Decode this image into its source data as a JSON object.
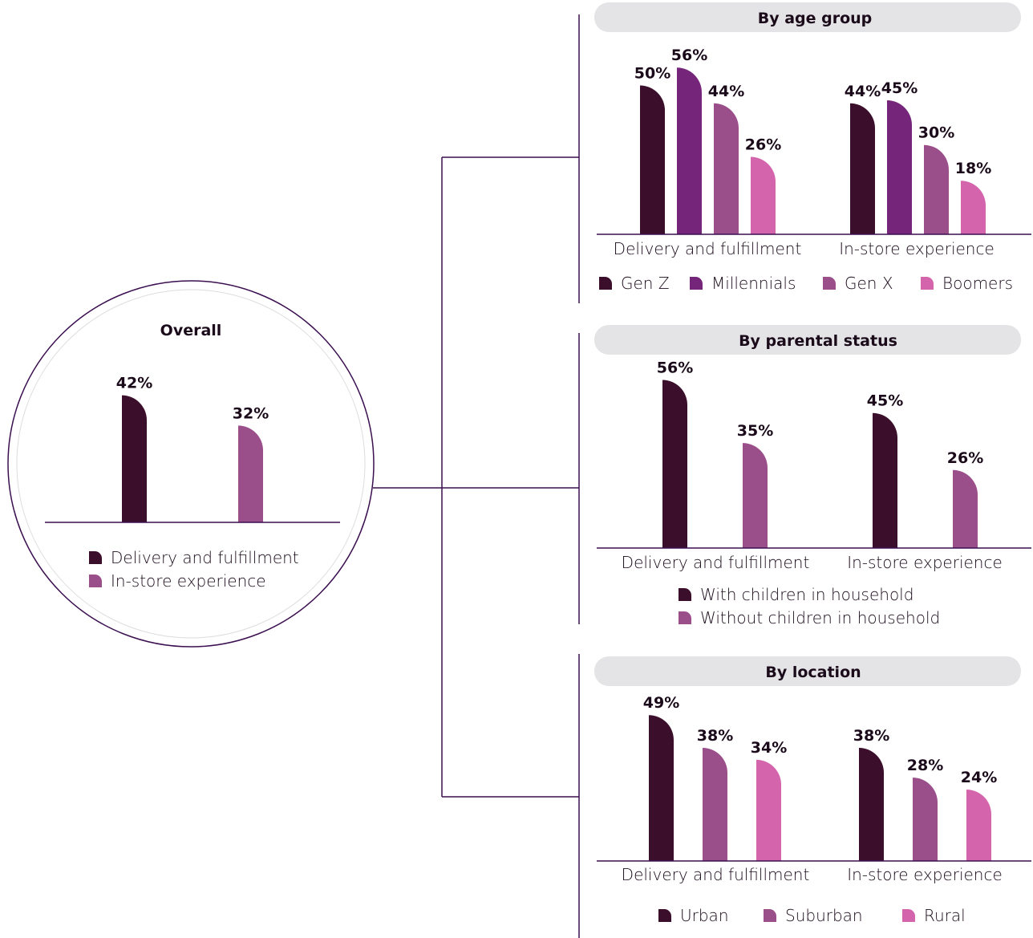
{
  "chart_data": [
    {
      "type": "bar",
      "title": "Overall",
      "categories": [
        ""
      ],
      "series": [
        {
          "name": "Delivery and fulfillment",
          "values": [
            42
          ],
          "labels": [
            "42%"
          ],
          "color": "#3b0f2c"
        },
        {
          "name": "In-store experience",
          "values": [
            32
          ],
          "labels": [
            "32%"
          ],
          "color": "#9b4f8a"
        }
      ],
      "unit": "%"
    },
    {
      "type": "bar",
      "title": "By age group",
      "categories": [
        "Delivery and fulfillment",
        "In-store experience"
      ],
      "series": [
        {
          "name": "Gen Z",
          "values": [
            50,
            44
          ],
          "labels": [
            "50%",
            "44%"
          ],
          "color": "#3b0f2c"
        },
        {
          "name": "Millennials",
          "values": [
            56,
            45
          ],
          "labels": [
            "56%",
            "45%"
          ],
          "color": "#76267a"
        },
        {
          "name": "Gen X",
          "values": [
            44,
            30
          ],
          "labels": [
            "44%",
            "30%"
          ],
          "color": "#9b4f8a"
        },
        {
          "name": "Boomers",
          "values": [
            26,
            18
          ],
          "labels": [
            "26%",
            "18%"
          ],
          "color": "#d465ad"
        }
      ],
      "unit": "%"
    },
    {
      "type": "bar",
      "title": "By parental status",
      "categories": [
        "Delivery and fulfillment",
        "In-store experience"
      ],
      "series": [
        {
          "name": "With children in household",
          "values": [
            56,
            45
          ],
          "labels": [
            "56%",
            "45%"
          ],
          "color": "#3b0f2c"
        },
        {
          "name": "Without children in household",
          "values": [
            35,
            26
          ],
          "labels": [
            "35%",
            "26%"
          ],
          "color": "#9b4f8a"
        }
      ],
      "unit": "%"
    },
    {
      "type": "bar",
      "title": "By location",
      "categories": [
        "Delivery and fulfillment",
        "In-store experience"
      ],
      "series": [
        {
          "name": "Urban",
          "values": [
            49,
            38
          ],
          "labels": [
            "49%",
            "38%"
          ],
          "color": "#3b0f2c"
        },
        {
          "name": "Suburban",
          "values": [
            38,
            28
          ],
          "labels": [
            "38%",
            "28%"
          ],
          "color": "#9b4f8a"
        },
        {
          "name": "Rural",
          "values": [
            34,
            24
          ],
          "labels": [
            "34%",
            "24%"
          ],
          "color": "#d465ad"
        }
      ],
      "unit": "%"
    }
  ],
  "colors": {
    "axis": "#3b0f50",
    "header_bg": "#e4e4e6",
    "connector": "#3b0f50",
    "circle": "#3b0f50"
  }
}
